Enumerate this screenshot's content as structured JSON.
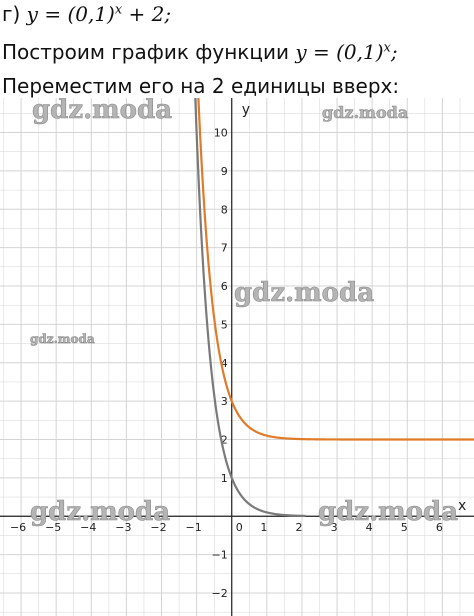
{
  "text": {
    "line1_prefix": "г) ",
    "line1_formula": "y = (0,1)",
    "line1_exp": "x",
    "line1_suffix": " + 2;",
    "line2_prefix": "Построим график функции ",
    "line2_formula": "y = (0,1)",
    "line2_exp": "x",
    "line2_suffix": ";",
    "line3": "Переместим его на 2 единицы вверх:"
  },
  "watermarks": [
    "gdz.moda",
    "gdz.moda",
    "gdz.moda",
    "gdz.moda",
    "gdz.moda",
    "gdz.moda"
  ],
  "colors": {
    "grid": "#d4d4d4",
    "axis": "#222222",
    "base_curve": "#7a7a7a",
    "shifted_curve": "#e07b2a"
  },
  "chart_data": {
    "type": "line",
    "title": "",
    "xlabel": "x",
    "ylabel": "y",
    "xlim": [
      -6.6,
      6.9
    ],
    "ylim": [
      -2.6,
      10.9
    ],
    "x_ticks": [
      -6,
      -5,
      -4,
      -3,
      -2,
      -1,
      0,
      1,
      2,
      3,
      4,
      5,
      6
    ],
    "y_ticks": [
      -2,
      -1,
      1,
      2,
      3,
      4,
      5,
      6,
      7,
      8,
      9,
      10
    ],
    "grid": true,
    "series": [
      {
        "function": "0.1^x",
        "color": "#7a7a7a",
        "points": [
          [
            -1,
            10
          ],
          [
            -0.5,
            3.16
          ],
          [
            0,
            1
          ],
          [
            0.5,
            0.32
          ],
          [
            1,
            0.1
          ],
          [
            2,
            0.01
          ],
          [
            3,
            0.001
          ]
        ]
      },
      {
        "function": "0.1^x + 2",
        "color": "#e07b2a",
        "points": [
          [
            -0.96,
            11.1
          ],
          [
            -0.5,
            5.16
          ],
          [
            0,
            3
          ],
          [
            0.5,
            2.32
          ],
          [
            1,
            2.1
          ],
          [
            2,
            2.01
          ],
          [
            6.9,
            2.0
          ]
        ]
      }
    ]
  }
}
